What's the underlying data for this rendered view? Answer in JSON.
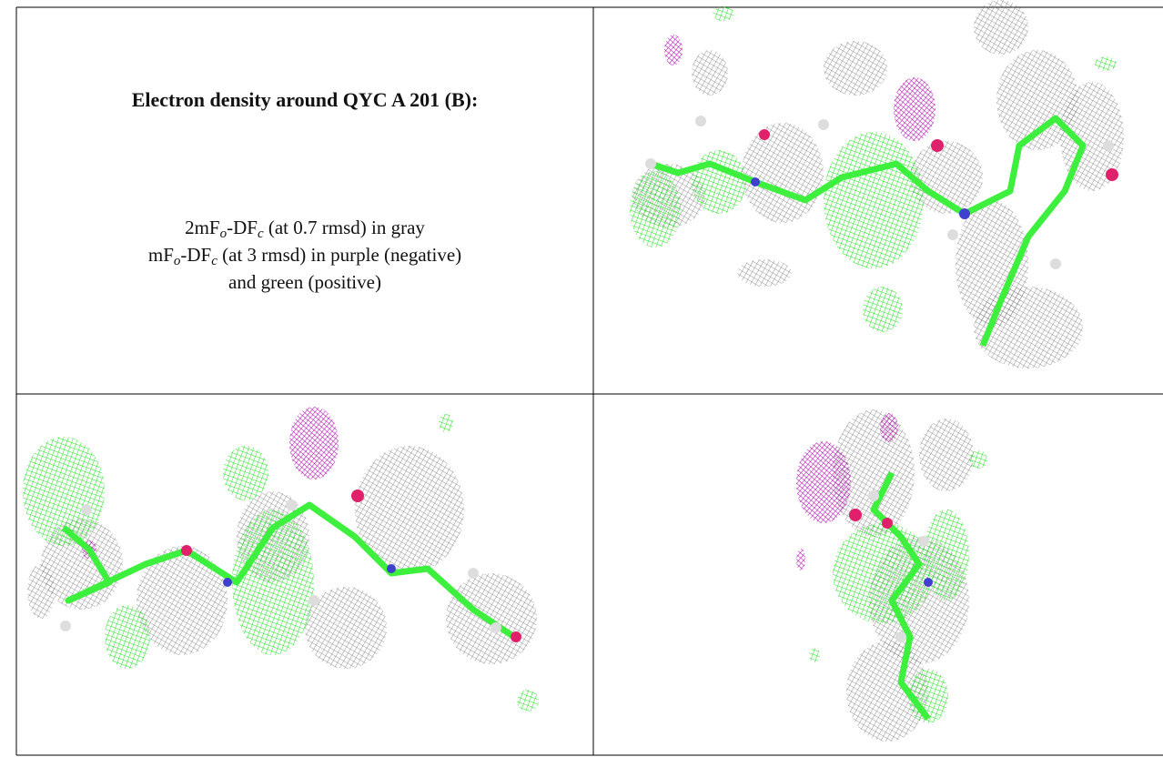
{
  "panel_text": {
    "title": "Electron density around QYC A 201 (B):",
    "lines": [
      [
        "2mF",
        "o",
        "-DF",
        "c",
        " (at 0.7 rmsd) in gray"
      ],
      [
        "mF",
        "o",
        "-DF",
        "c",
        " (at 3 rmsd) in purple (negative)"
      ],
      [
        "and green (positive)"
      ]
    ]
  }
}
